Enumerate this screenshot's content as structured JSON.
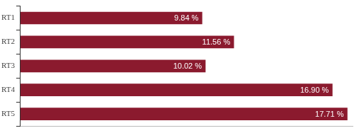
{
  "chart_data": {
    "type": "bar",
    "orientation": "horizontal",
    "categories": [
      "RT1",
      "RT2",
      "RT3",
      "RT4",
      "RT5"
    ],
    "values": [
      9.84,
      11.56,
      10.02,
      16.9,
      17.71
    ],
    "value_labels": [
      "9.84 %",
      "11.56 %",
      "10.02 %",
      "16.90 %",
      "17.71 %"
    ],
    "color": "#8b1a2e",
    "xlim": [
      0,
      18
    ],
    "grid": false,
    "data_labels": true,
    "tick_labels": "y"
  }
}
